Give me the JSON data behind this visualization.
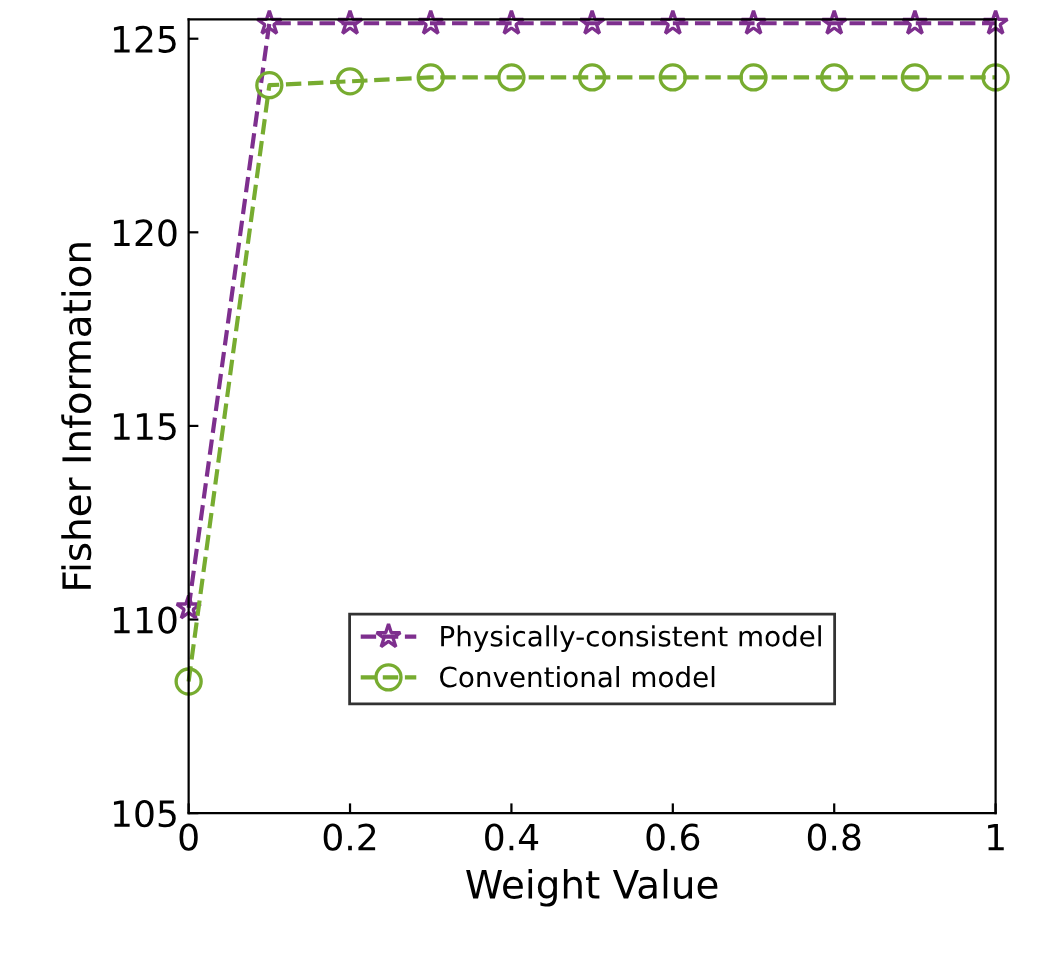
{
  "chart_data": {
    "type": "line",
    "xlabel": "Weight Value",
    "ylabel": "Fisher Information",
    "x": [
      0,
      0.1,
      0.2,
      0.3,
      0.4,
      0.5,
      0.6,
      0.7,
      0.8,
      0.9,
      1
    ],
    "series": [
      {
        "name": "Physically-consistent model",
        "color": "#7e2f8e",
        "marker": "star",
        "values": [
          110.3,
          125.4,
          125.4,
          125.4,
          125.4,
          125.4,
          125.4,
          125.4,
          125.4,
          125.4,
          125.4
        ]
      },
      {
        "name": "Conventional model",
        "color": "#77ac30",
        "marker": "circle",
        "values": [
          108.4,
          123.8,
          123.9,
          124.0,
          124.0,
          124.0,
          124.0,
          124.0,
          124.0,
          124.0,
          124.0
        ]
      }
    ],
    "line_style": "dashed",
    "xlim": [
      0,
      1
    ],
    "ylim": [
      105,
      125.5
    ],
    "xticks": [
      0,
      0.2,
      0.4,
      0.6,
      0.8,
      1
    ],
    "yticks": [
      105,
      110,
      115,
      120,
      125
    ],
    "grid": false,
    "legend": "bottom"
  }
}
